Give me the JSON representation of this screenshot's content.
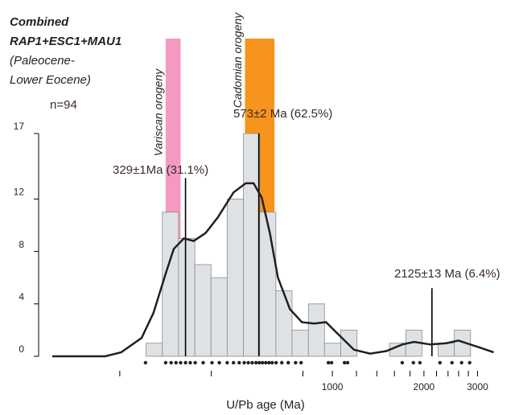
{
  "chart_data": {
    "type": "histogram",
    "title_lines": [
      "Combined",
      "RAP1+ESC1+MAU1",
      "(Paleocene-",
      "Lower Eocene)"
    ],
    "sample_size_label": "n=94",
    "xlabel": "U/Pb age (Ma)",
    "xscale": "log",
    "xlim": [
      120,
      3400
    ],
    "xticks": [
      1000,
      2000,
      3000
    ],
    "xminorticks": [
      200,
      400,
      800,
      1200,
      1400,
      1600,
      1800,
      2200,
      2400,
      2600,
      2800
    ],
    "ylim": [
      0,
      17
    ],
    "yticks": [
      0,
      4,
      8,
      12,
      17
    ],
    "bins": [
      244,
      276,
      312,
      353,
      399,
      451,
      510,
      577,
      652,
      737,
      834,
      942,
      1066,
      1205,
      1363,
      1541,
      1742,
      1969,
      2227,
      2518,
      2846
    ],
    "counts": [
      1,
      11,
      9,
      7,
      6,
      12,
      17,
      11,
      5,
      2,
      4,
      1,
      2,
      0,
      0,
      1,
      2,
      0,
      1,
      2
    ],
    "bar_color": "#dfe2e5",
    "bands": [
      {
        "name": "Variscan orogeny",
        "color": "#f49ac1",
        "range": [
          283,
          317
        ]
      },
      {
        "name": "Cadomian orogeny",
        "color": "#f7941d",
        "range": [
          516,
          645
        ]
      }
    ],
    "curve": {
      "x": [
        120,
        179,
        202,
        236,
        258,
        283,
        301,
        325,
        350,
        383,
        420,
        473,
        519,
        551,
        586,
        623,
        662,
        725,
        794,
        870,
        953,
        1043,
        1178,
        1331,
        1503,
        1698,
        1858,
        2099,
        2370,
        2595,
        2843,
        3112,
        3390
      ],
      "y": [
        0,
        0,
        0.3,
        1.4,
        3.3,
        6.3,
        8.2,
        9.0,
        8.8,
        9.4,
        10.6,
        12.5,
        13.2,
        13.2,
        12.1,
        9.4,
        6.0,
        3.6,
        2.6,
        2.5,
        2.6,
        1.7,
        0.5,
        0.2,
        0.4,
        0.9,
        1.1,
        0.9,
        1.0,
        1.2,
        0.9,
        0.6,
        0.3
      ]
    },
    "peaks": [
      {
        "label": "329±1Ma (31.1%)",
        "age": 329,
        "height": 13.6
      },
      {
        "label": "573±2 Ma (62.5%)",
        "age": 573,
        "height": 17
      },
      {
        "label": "2125±13 Ma (6.4%)",
        "age": 2125,
        "height": 5.2
      }
    ],
    "samples": [
      243,
      283,
      295,
      306,
      317,
      329,
      341,
      354,
      376,
      402,
      425,
      451,
      473,
      494,
      513,
      529,
      545,
      561,
      575,
      589,
      604,
      619,
      634,
      653,
      682,
      716,
      757,
      789,
      970,
      994,
      1096,
      1122,
      1697,
      1846,
      1940,
      2258,
      2473,
      2660,
      2827
    ]
  }
}
